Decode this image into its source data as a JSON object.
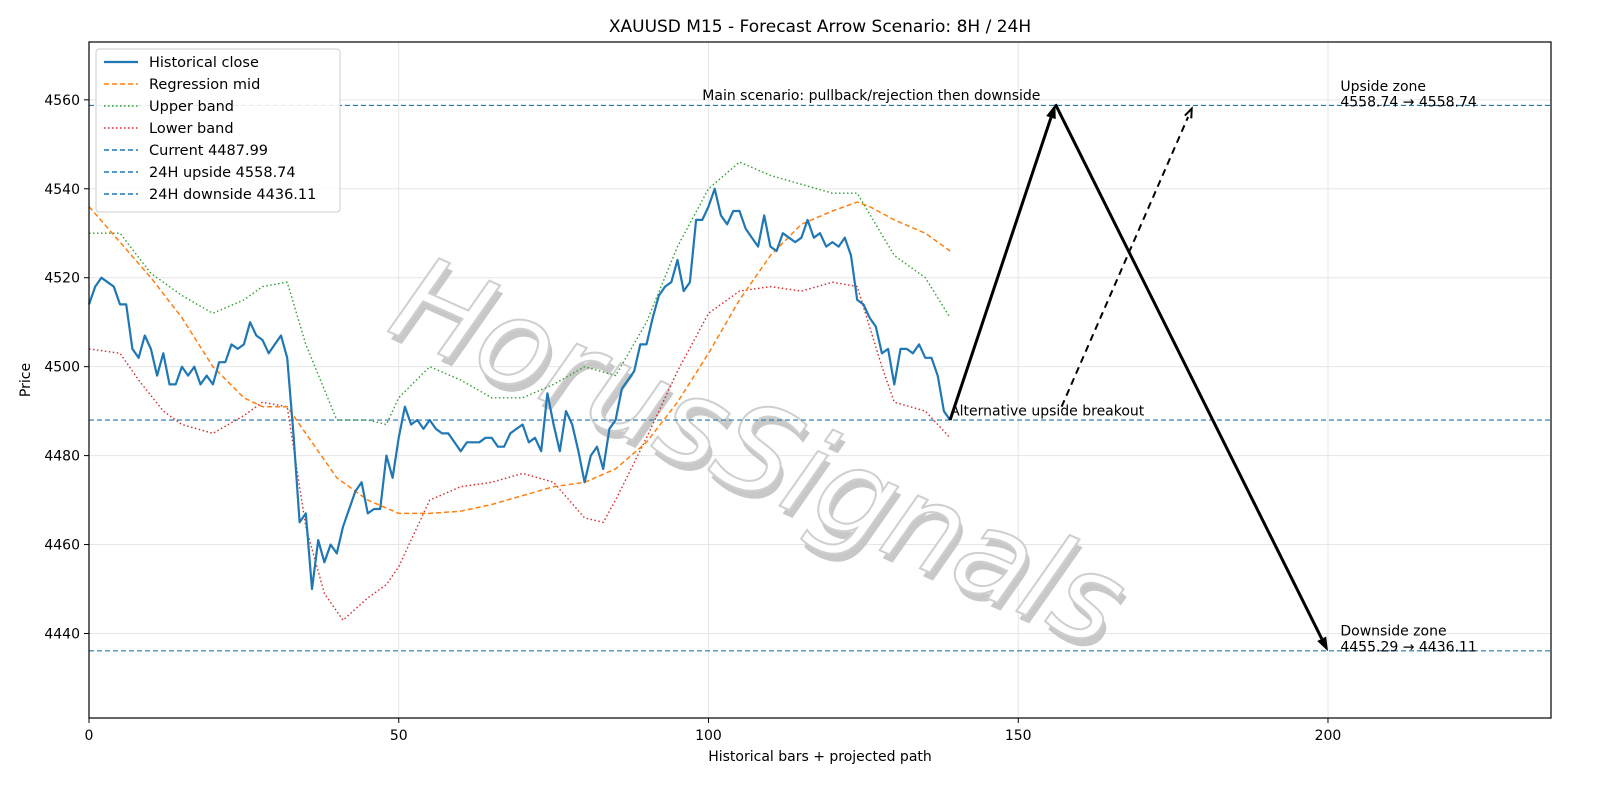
{
  "chart_data": {
    "type": "line",
    "title": "XAUUSD M15 - Forecast Arrow Scenario: 8H / 24H",
    "xlabel": "Historical bars + projected path",
    "ylabel": "Price",
    "xlim": [
      0,
      236
    ],
    "ylim": [
      4421,
      4573
    ],
    "xticks": [
      0,
      50,
      100,
      150,
      200
    ],
    "yticks": [
      4440,
      4460,
      4480,
      4500,
      4520,
      4540,
      4560
    ],
    "grid": true,
    "legend_position": "top-left",
    "watermark": "HorusSignals",
    "colors": {
      "close": "#1f77b4",
      "mid": "#ff7f0e",
      "upper": "#2ca02c",
      "lower": "#d62728",
      "hline": "#1f77b4",
      "arrow": "#000000"
    },
    "series": [
      {
        "name": "Historical close",
        "style": "solid",
        "points": [
          [
            0,
            4514
          ],
          [
            1,
            4518
          ],
          [
            2,
            4520
          ],
          [
            3,
            4519
          ],
          [
            4,
            4518
          ],
          [
            5,
            4514
          ],
          [
            6,
            4514
          ],
          [
            7,
            4504
          ],
          [
            8,
            4502
          ],
          [
            9,
            4507
          ],
          [
            10,
            4504
          ],
          [
            11,
            4498
          ],
          [
            12,
            4503
          ],
          [
            13,
            4496
          ],
          [
            14,
            4496
          ],
          [
            15,
            4500
          ],
          [
            16,
            4498
          ],
          [
            17,
            4500
          ],
          [
            18,
            4496
          ],
          [
            19,
            4498
          ],
          [
            20,
            4496
          ],
          [
            21,
            4501
          ],
          [
            22,
            4501
          ],
          [
            23,
            4505
          ],
          [
            24,
            4504
          ],
          [
            25,
            4505
          ],
          [
            26,
            4510
          ],
          [
            27,
            4507
          ],
          [
            28,
            4506
          ],
          [
            29,
            4503
          ],
          [
            30,
            4505
          ],
          [
            31,
            4507
          ],
          [
            32,
            4502
          ],
          [
            33,
            4485
          ],
          [
            34,
            4465
          ],
          [
            35,
            4467
          ],
          [
            36,
            4450
          ],
          [
            37,
            4461
          ],
          [
            38,
            4456
          ],
          [
            39,
            4460
          ],
          [
            40,
            4458
          ],
          [
            41,
            4464
          ],
          [
            42,
            4468
          ],
          [
            43,
            4472
          ],
          [
            44,
            4474
          ],
          [
            45,
            4467
          ],
          [
            46,
            4468
          ],
          [
            47,
            4468
          ],
          [
            48,
            4480
          ],
          [
            49,
            4475
          ],
          [
            50,
            4484
          ],
          [
            51,
            4491
          ],
          [
            52,
            4487
          ],
          [
            53,
            4488
          ],
          [
            54,
            4486
          ],
          [
            55,
            4488
          ],
          [
            56,
            4486
          ],
          [
            57,
            4485
          ],
          [
            58,
            4485
          ],
          [
            59,
            4483
          ],
          [
            60,
            4481
          ],
          [
            61,
            4483
          ],
          [
            62,
            4483
          ],
          [
            63,
            4483
          ],
          [
            64,
            4484
          ],
          [
            65,
            4484
          ],
          [
            66,
            4482
          ],
          [
            67,
            4482
          ],
          [
            68,
            4485
          ],
          [
            69,
            4486
          ],
          [
            70,
            4487
          ],
          [
            71,
            4483
          ],
          [
            72,
            4484
          ],
          [
            73,
            4481
          ],
          [
            74,
            4494
          ],
          [
            75,
            4487
          ],
          [
            76,
            4481
          ],
          [
            77,
            4490
          ],
          [
            78,
            4487
          ],
          [
            79,
            4481
          ],
          [
            80,
            4474
          ],
          [
            81,
            4480
          ],
          [
            82,
            4482
          ],
          [
            83,
            4477
          ],
          [
            84,
            4486
          ],
          [
            85,
            4488
          ],
          [
            86,
            4495
          ],
          [
            87,
            4497
          ],
          [
            88,
            4499
          ],
          [
            89,
            4505
          ],
          [
            90,
            4505
          ],
          [
            91,
            4511
          ],
          [
            92,
            4516
          ],
          [
            93,
            4518
          ],
          [
            94,
            4519
          ],
          [
            95,
            4524
          ],
          [
            96,
            4517
          ],
          [
            97,
            4519
          ],
          [
            98,
            4533
          ],
          [
            99,
            4533
          ],
          [
            100,
            4536
          ],
          [
            101,
            4540
          ],
          [
            102,
            4534
          ],
          [
            103,
            4532
          ],
          [
            104,
            4535
          ],
          [
            105,
            4535
          ],
          [
            106,
            4531
          ],
          [
            107,
            4529
          ],
          [
            108,
            4527
          ],
          [
            109,
            4534
          ],
          [
            110,
            4527
          ],
          [
            111,
            4526
          ],
          [
            112,
            4530
          ],
          [
            113,
            4529
          ],
          [
            114,
            4528
          ],
          [
            115,
            4529
          ],
          [
            116,
            4533
          ],
          [
            117,
            4529
          ],
          [
            118,
            4530
          ],
          [
            119,
            4527
          ],
          [
            120,
            4528
          ],
          [
            121,
            4527
          ],
          [
            122,
            4529
          ],
          [
            123,
            4525
          ],
          [
            124,
            4515
          ],
          [
            125,
            4514
          ],
          [
            126,
            4511
          ],
          [
            127,
            4509
          ],
          [
            128,
            4503
          ],
          [
            129,
            4504
          ],
          [
            130,
            4496
          ],
          [
            131,
            4504
          ],
          [
            132,
            4504
          ],
          [
            133,
            4503
          ],
          [
            134,
            4505
          ],
          [
            135,
            4502
          ],
          [
            136,
            4502
          ],
          [
            137,
            4498
          ],
          [
            138,
            4490
          ],
          [
            139,
            4488
          ]
        ]
      },
      {
        "name": "Regression mid",
        "style": "dashed",
        "points": [
          [
            0,
            4536
          ],
          [
            5,
            4528
          ],
          [
            10,
            4520
          ],
          [
            15,
            4511
          ],
          [
            20,
            4500
          ],
          [
            25,
            4493
          ],
          [
            28,
            4491
          ],
          [
            32,
            4491
          ],
          [
            35,
            4485
          ],
          [
            40,
            4475
          ],
          [
            45,
            4470
          ],
          [
            50,
            4467
          ],
          [
            55,
            4467
          ],
          [
            60,
            4467.5
          ],
          [
            65,
            4469
          ],
          [
            70,
            4471
          ],
          [
            75,
            4473
          ],
          [
            80,
            4474
          ],
          [
            85,
            4477
          ],
          [
            90,
            4483
          ],
          [
            95,
            4492
          ],
          [
            100,
            4503
          ],
          [
            105,
            4515
          ],
          [
            110,
            4525
          ],
          [
            115,
            4532
          ],
          [
            120,
            4535
          ],
          [
            124,
            4537
          ],
          [
            126,
            4536
          ],
          [
            130,
            4533
          ],
          [
            135,
            4530
          ],
          [
            139,
            4526
          ]
        ]
      },
      {
        "name": "Upper band",
        "style": "dotted",
        "points": [
          [
            0,
            4530
          ],
          [
            5,
            4530
          ],
          [
            10,
            4521
          ],
          [
            15,
            4516
          ],
          [
            20,
            4512
          ],
          [
            25,
            4515
          ],
          [
            28,
            4518
          ],
          [
            32,
            4519
          ],
          [
            35,
            4505
          ],
          [
            40,
            4488
          ],
          [
            45,
            4488
          ],
          [
            48,
            4487
          ],
          [
            50,
            4493
          ],
          [
            55,
            4500
          ],
          [
            60,
            4497
          ],
          [
            65,
            4493
          ],
          [
            70,
            4493
          ],
          [
            75,
            4496
          ],
          [
            80,
            4500
          ],
          [
            85,
            4498
          ],
          [
            90,
            4510
          ],
          [
            95,
            4527
          ],
          [
            100,
            4540
          ],
          [
            105,
            4546
          ],
          [
            110,
            4543
          ],
          [
            115,
            4541
          ],
          [
            120,
            4539
          ],
          [
            124,
            4539
          ],
          [
            130,
            4525
          ],
          [
            135,
            4520
          ],
          [
            139,
            4511
          ]
        ]
      },
      {
        "name": "Lower band",
        "style": "dotted",
        "points": [
          [
            0,
            4504
          ],
          [
            5,
            4503
          ],
          [
            8,
            4497
          ],
          [
            12,
            4490
          ],
          [
            15,
            4487
          ],
          [
            20,
            4485
          ],
          [
            25,
            4489
          ],
          [
            28,
            4492
          ],
          [
            32,
            4491
          ],
          [
            35,
            4464
          ],
          [
            38,
            4449
          ],
          [
            41,
            4443
          ],
          [
            45,
            4448
          ],
          [
            48,
            4451
          ],
          [
            50,
            4455
          ],
          [
            55,
            4470
          ],
          [
            60,
            4473
          ],
          [
            65,
            4474
          ],
          [
            70,
            4476
          ],
          [
            75,
            4474
          ],
          [
            80,
            4466
          ],
          [
            83,
            4465
          ],
          [
            85,
            4470
          ],
          [
            90,
            4484
          ],
          [
            95,
            4499
          ],
          [
            100,
            4512
          ],
          [
            105,
            4517
          ],
          [
            110,
            4518
          ],
          [
            115,
            4517
          ],
          [
            120,
            4519
          ],
          [
            124,
            4518
          ],
          [
            128,
            4500
          ],
          [
            130,
            4492
          ],
          [
            135,
            4490
          ],
          [
            139,
            4484
          ]
        ]
      }
    ],
    "hlines": [
      {
        "name": "Current 4487.99",
        "value": 4487.99
      },
      {
        "name": "24H upside 4558.74",
        "value": 4558.74
      },
      {
        "name": "24H downside 4436.11",
        "value": 4436.11
      }
    ],
    "arrows": [
      {
        "style": "solid",
        "from": [
          139,
          4488
        ],
        "to": [
          156,
          4559
        ]
      },
      {
        "style": "solid",
        "from": [
          156,
          4559
        ],
        "to": [
          200,
          4436
        ]
      },
      {
        "style": "dashed",
        "from": [
          157,
          4491
        ],
        "to": [
          178,
          4558
        ]
      }
    ],
    "annotations": [
      {
        "text": "Main scenario: pullback/rejection then downside",
        "x": 99,
        "y": 4560
      },
      {
        "text": "Alternative upside breakout",
        "x": 139,
        "y": 4489
      },
      {
        "text": "Upside zone",
        "x": 202,
        "y": 4562
      },
      {
        "text": "4558.74 → 4558.74",
        "x": 202,
        "y": 4558.5
      },
      {
        "text": "Downside zone",
        "x": 202,
        "y": 4439.5
      },
      {
        "text": "4455.29 → 4436.11",
        "x": 202,
        "y": 4436
      }
    ]
  }
}
